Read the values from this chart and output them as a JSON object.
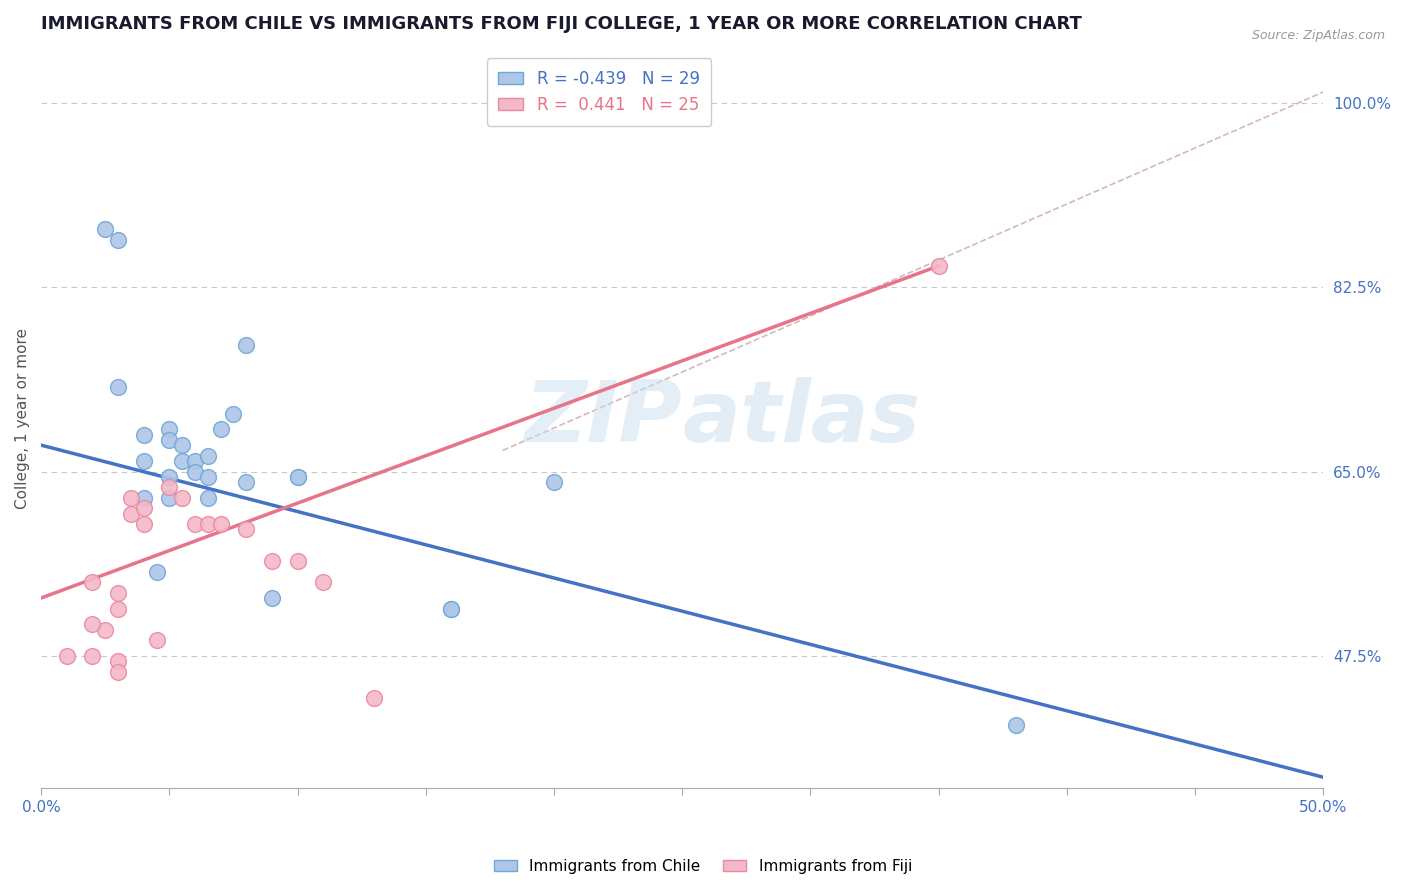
{
  "title": "IMMIGRANTS FROM CHILE VS IMMIGRANTS FROM FIJI COLLEGE, 1 YEAR OR MORE CORRELATION CHART",
  "source": "Source: ZipAtlas.com",
  "ylabel": "College, 1 year or more",
  "xlim": [
    0.0,
    0.5
  ],
  "ylim": [
    0.35,
    1.05
  ],
  "ytick_labels_right": [
    "100.0%",
    "82.5%",
    "65.0%",
    "47.5%"
  ],
  "ytick_values_right": [
    1.0,
    0.825,
    0.65,
    0.475
  ],
  "chile_color": "#aec6e8",
  "chile_edge_color": "#6fa8d6",
  "fiji_color": "#f5b8c8",
  "fiji_edge_color": "#e88aa0",
  "chile_R": -0.439,
  "chile_N": 29,
  "fiji_R": 0.441,
  "fiji_N": 25,
  "chile_scatter_x": [
    0.025,
    0.03,
    0.04,
    0.05,
    0.05,
    0.055,
    0.055,
    0.06,
    0.06,
    0.065,
    0.065,
    0.065,
    0.07,
    0.075,
    0.08,
    0.08,
    0.09,
    0.1,
    0.03,
    0.16,
    0.2,
    0.38,
    0.04,
    0.04,
    0.05,
    0.05,
    0.1,
    0.16,
    0.045
  ],
  "chile_scatter_y": [
    0.88,
    0.73,
    0.685,
    0.69,
    0.68,
    0.675,
    0.66,
    0.66,
    0.65,
    0.665,
    0.645,
    0.625,
    0.69,
    0.705,
    0.77,
    0.64,
    0.53,
    0.645,
    0.87,
    0.52,
    0.64,
    0.41,
    0.66,
    0.625,
    0.645,
    0.625,
    0.645,
    0.52,
    0.555
  ],
  "fiji_scatter_x": [
    0.01,
    0.02,
    0.025,
    0.03,
    0.03,
    0.035,
    0.035,
    0.04,
    0.04,
    0.045,
    0.05,
    0.055,
    0.06,
    0.065,
    0.07,
    0.08,
    0.09,
    0.1,
    0.11,
    0.13,
    0.02,
    0.02,
    0.03,
    0.03,
    0.35
  ],
  "fiji_scatter_y": [
    0.475,
    0.475,
    0.5,
    0.535,
    0.52,
    0.625,
    0.61,
    0.615,
    0.6,
    0.49,
    0.635,
    0.625,
    0.6,
    0.6,
    0.6,
    0.595,
    0.565,
    0.565,
    0.545,
    0.435,
    0.545,
    0.505,
    0.47,
    0.46,
    0.845
  ],
  "chile_line_x": [
    0.0,
    0.5
  ],
  "chile_line_y": [
    0.675,
    0.36
  ],
  "fiji_line_x": [
    0.0,
    0.35
  ],
  "fiji_line_y": [
    0.53,
    0.845
  ],
  "ref_line_x": [
    0.18,
    0.5
  ],
  "ref_line_y": [
    0.67,
    1.01
  ],
  "watermark_zip": "ZIP",
  "watermark_atlas": "atlas",
  "legend_chile": "Immigrants from Chile",
  "legend_fiji": "Immigrants from Fiji",
  "axis_color": "#4472c4",
  "grid_color": "#c8c8c8",
  "title_fontsize": 13,
  "axis_label_fontsize": 11,
  "tick_fontsize": 11,
  "source_fontsize": 9
}
